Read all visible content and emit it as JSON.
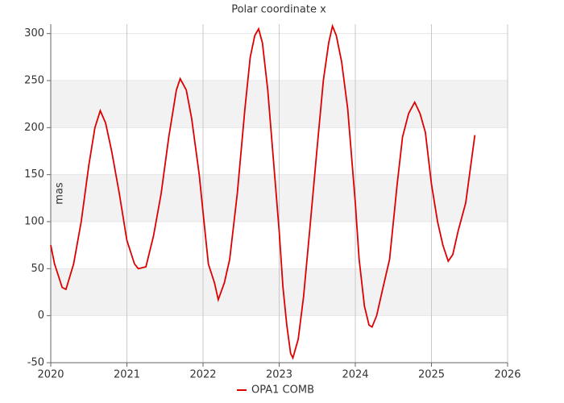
{
  "chart_data": {
    "type": "line",
    "title": "Polar coordinate x",
    "y_label": "mas",
    "x": [
      2020.0,
      2020.05,
      2020.15,
      2020.2,
      2020.3,
      2020.4,
      2020.5,
      2020.58,
      2020.65,
      2020.72,
      2020.8,
      2020.9,
      2021.0,
      2021.1,
      2021.15,
      2021.25,
      2021.35,
      2021.45,
      2021.55,
      2021.65,
      2021.7,
      2021.78,
      2021.85,
      2021.95,
      2022.0,
      2022.07,
      2022.15,
      2022.2,
      2022.28,
      2022.35,
      2022.45,
      2022.55,
      2022.62,
      2022.68,
      2022.73,
      2022.78,
      2022.85,
      2022.92,
      2023.0,
      2023.05,
      2023.1,
      2023.15,
      2023.18,
      2023.25,
      2023.32,
      2023.4,
      2023.5,
      2023.58,
      2023.65,
      2023.7,
      2023.75,
      2023.82,
      2023.9,
      2024.0,
      2024.05,
      2024.12,
      2024.18,
      2024.22,
      2024.28,
      2024.35,
      2024.45,
      2024.55,
      2024.62,
      2024.7,
      2024.78,
      2024.85,
      2024.92,
      2025.0,
      2025.08,
      2025.15,
      2025.22,
      2025.28,
      2025.35,
      2025.45,
      2025.5,
      2025.55,
      2025.57
    ],
    "series": [
      {
        "name": "OPA1 COMB",
        "color": "#dd0000",
        "values": [
          75,
          55,
          30,
          28,
          55,
          100,
          160,
          200,
          218,
          205,
          175,
          130,
          80,
          55,
          50,
          52,
          85,
          130,
          190,
          240,
          252,
          240,
          210,
          150,
          110,
          55,
          35,
          17,
          35,
          60,
          130,
          220,
          275,
          298,
          305,
          290,
          240,
          170,
          90,
          30,
          -10,
          -40,
          -45,
          -25,
          20,
          90,
          180,
          250,
          290,
          308,
          298,
          270,
          220,
          120,
          60,
          10,
          -10,
          -12,
          0,
          25,
          60,
          140,
          190,
          215,
          227,
          215,
          195,
          140,
          100,
          75,
          58,
          65,
          90,
          120,
          150,
          180,
          192
        ]
      }
    ],
    "xlim": [
      2020,
      2026
    ],
    "xticks": [
      2020,
      2021,
      2022,
      2023,
      2024,
      2025,
      2026
    ],
    "ylim": [
      -50,
      310
    ],
    "yticks": [
      -50,
      0,
      50,
      100,
      150,
      200,
      250,
      300
    ],
    "grid": true,
    "legend": "bottom"
  }
}
